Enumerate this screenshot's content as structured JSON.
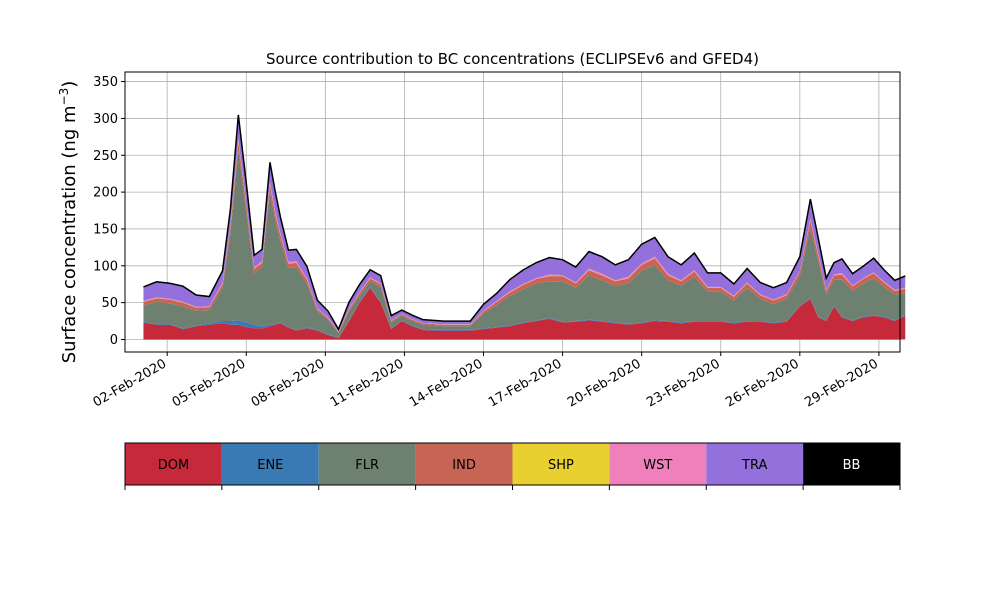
{
  "chart_data": {
    "type": "area",
    "stacked": true,
    "title": "Source contribution to BC concentrations (ECLIPSEv6 and GFED4)",
    "ylabel": "Surface concentration (ng m",
    "ylabel_superscript": "−3",
    "ylabel_suffix": ")",
    "ylim": [
      -17,
      363
    ],
    "yticks": [
      0,
      50,
      100,
      150,
      200,
      250,
      300,
      350
    ],
    "xlim": [
      31.4,
      60.8
    ],
    "xticks": [
      {
        "day": 33,
        "label": "02-Feb-2020"
      },
      {
        "day": 36,
        "label": "05-Feb-2020"
      },
      {
        "day": 39,
        "label": "08-Feb-2020"
      },
      {
        "day": 42,
        "label": "11-Feb-2020"
      },
      {
        "day": 45,
        "label": "14-Feb-2020"
      },
      {
        "day": 48,
        "label": "17-Feb-2020"
      },
      {
        "day": 51,
        "label": "20-Feb-2020"
      },
      {
        "day": 54,
        "label": "23-Feb-2020"
      },
      {
        "day": 57,
        "label": "26-Feb-2020"
      },
      {
        "day": 60,
        "label": "29-Feb-2020"
      }
    ],
    "grid": true,
    "legend_placement": "bottom colorbar",
    "x": [
      32.1,
      32.6,
      33.1,
      33.6,
      34.1,
      34.6,
      35.1,
      35.4,
      35.7,
      36.0,
      36.3,
      36.6,
      36.9,
      37.1,
      37.3,
      37.6,
      37.9,
      38.3,
      38.7,
      39.1,
      39.5,
      39.9,
      40.3,
      40.7,
      41.1,
      41.5,
      41.9,
      42.3,
      42.7,
      43.1,
      43.5,
      44.0,
      44.5,
      45.0,
      45.5,
      46.0,
      46.5,
      47.0,
      47.5,
      48.0,
      48.5,
      49.0,
      49.5,
      50.0,
      50.5,
      51.0,
      51.5,
      52.0,
      52.5,
      53.0,
      53.5,
      54.0,
      54.5,
      55.0,
      55.5,
      56.0,
      56.5,
      57.0,
      57.4,
      57.7,
      58.0,
      58.3,
      58.6,
      59.0,
      59.4,
      59.8,
      60.2,
      60.6,
      61.0
    ],
    "series": [
      {
        "name": "DOM",
        "color": "#c62a3a",
        "values": [
          23,
          20,
          20,
          14,
          18,
          20,
          22,
          20,
          20,
          17,
          15,
          15,
          18,
          20,
          22,
          16,
          12,
          15,
          12,
          6,
          2,
          25,
          50,
          70,
          50,
          14,
          25,
          18,
          13,
          12,
          12,
          12,
          12,
          14,
          16,
          18,
          22,
          25,
          28,
          23,
          24,
          26,
          24,
          22,
          20,
          22,
          25,
          24,
          22,
          24,
          24,
          24,
          22,
          24,
          24,
          22,
          24,
          45,
          55,
          30,
          25,
          45,
          30,
          25,
          30,
          32,
          30,
          25,
          32
        ]
      },
      {
        "name": "ENE",
        "color": "#3a7ab4",
        "values": [
          1,
          1,
          1,
          1,
          1,
          2,
          3,
          5,
          6,
          6,
          5,
          3,
          2,
          1,
          1,
          1,
          1,
          1,
          1,
          1,
          1,
          1,
          1,
          1,
          1,
          1,
          1,
          1,
          1,
          1,
          1,
          1,
          1,
          1,
          1,
          1,
          1,
          1,
          1,
          1,
          1,
          1,
          1,
          1,
          1,
          1,
          1,
          1,
          1,
          1,
          1,
          1,
          1,
          1,
          1,
          1,
          1,
          1,
          1,
          1,
          1,
          1,
          1,
          1,
          1,
          1,
          1,
          1,
          1
        ]
      },
      {
        "name": "FLR",
        "color": "#6e8070",
        "values": [
          22,
          30,
          28,
          30,
          20,
          18,
          45,
          120,
          230,
          150,
          70,
          80,
          180,
          140,
          110,
          80,
          85,
          60,
          25,
          20,
          6,
          12,
          8,
          8,
          20,
          8,
          6,
          6,
          6,
          6,
          5,
          5,
          5,
          20,
          30,
          40,
          45,
          50,
          50,
          55,
          45,
          60,
          55,
          50,
          55,
          70,
          75,
          55,
          50,
          60,
          40,
          40,
          30,
          45,
          30,
          25,
          30,
          40,
          95,
          75,
          35,
          35,
          50,
          40,
          45,
          50,
          40,
          35,
          30
        ]
      },
      {
        "name": "IND",
        "color": "#c86454",
        "values": [
          5,
          5,
          5,
          5,
          4,
          4,
          5,
          8,
          12,
          10,
          6,
          6,
          10,
          9,
          8,
          6,
          6,
          5,
          3,
          2,
          1,
          3,
          4,
          4,
          4,
          2,
          2,
          2,
          2,
          2,
          2,
          2,
          2,
          3,
          4,
          5,
          6,
          6,
          7,
          7,
          6,
          7,
          7,
          6,
          7,
          8,
          9,
          7,
          6,
          7,
          5,
          5,
          5,
          6,
          5,
          5,
          5,
          6,
          10,
          8,
          5,
          6,
          7,
          6,
          6,
          7,
          6,
          5,
          6
        ]
      },
      {
        "name": "SHP",
        "color": "#e8d030",
        "values": [
          0.3,
          0.3,
          0.3,
          0.3,
          0.3,
          0.3,
          0.3,
          0.5,
          0.8,
          0.5,
          0.3,
          0.3,
          0.5,
          0.5,
          0.5,
          0.3,
          0.3,
          0.3,
          0.2,
          0.1,
          0.1,
          0.2,
          0.2,
          0.2,
          0.2,
          0.1,
          0.1,
          0.1,
          0.1,
          0.1,
          0.1,
          0.1,
          0.1,
          0.2,
          0.2,
          0.3,
          0.3,
          0.3,
          0.3,
          0.3,
          0.3,
          0.3,
          0.3,
          0.3,
          0.3,
          0.3,
          0.4,
          0.3,
          0.3,
          0.3,
          0.3,
          0.3,
          0.3,
          0.3,
          0.3,
          0.3,
          0.3,
          0.3,
          0.5,
          0.4,
          0.3,
          0.3,
          0.3,
          0.3,
          0.3,
          0.3,
          0.3,
          0.3,
          0.3
        ]
      },
      {
        "name": "WST",
        "color": "#f080bc",
        "values": [
          1,
          1,
          1,
          1,
          1,
          1,
          2,
          2,
          3,
          2,
          2,
          2,
          3,
          3,
          2,
          2,
          2,
          2,
          1,
          1,
          0.5,
          1,
          1,
          1,
          1,
          1,
          0.5,
          0.5,
          0.5,
          0.5,
          0.5,
          0.5,
          0.5,
          1,
          1,
          1,
          1,
          1,
          2,
          1,
          1,
          2,
          2,
          1,
          2,
          2,
          2,
          2,
          1,
          2,
          1,
          1,
          1,
          1,
          1,
          1,
          1,
          1,
          2,
          2,
          1,
          1,
          2,
          1,
          1,
          1,
          1,
          1,
          1
        ]
      },
      {
        "name": "TRA",
        "color": "#9370db",
        "values": [
          18,
          20,
          20,
          20,
          15,
          12,
          15,
          20,
          30,
          25,
          15,
          15,
          25,
          25,
          20,
          15,
          15,
          15,
          10,
          8,
          3,
          8,
          10,
          10,
          10,
          6,
          5,
          5,
          4,
          4,
          4,
          4,
          4,
          8,
          10,
          15,
          18,
          20,
          22,
          20,
          20,
          22,
          22,
          20,
          22,
          25,
          25,
          22,
          20,
          22,
          18,
          18,
          15,
          18,
          15,
          15,
          15,
          18,
          25,
          20,
          15,
          15,
          18,
          15,
          15,
          18,
          15,
          12,
          15
        ]
      },
      {
        "name": "BB",
        "color": "#000000",
        "values": [
          1,
          1,
          1,
          1,
          1,
          1,
          1,
          2,
          3,
          2,
          1,
          1,
          2,
          2,
          2,
          1,
          1,
          1,
          1,
          0.5,
          0.3,
          0.5,
          0.5,
          0.5,
          0.5,
          0.3,
          0.3,
          0.3,
          0.3,
          0.3,
          0.3,
          0.3,
          0.3,
          0.5,
          0.5,
          1,
          1,
          1,
          1,
          1,
          1,
          1,
          1,
          1,
          1,
          1,
          1,
          1,
          1,
          1,
          1,
          1,
          1,
          1,
          1,
          1,
          1,
          1,
          2,
          1,
          1,
          1,
          1,
          1,
          1,
          1,
          1,
          1,
          1
        ]
      }
    ]
  }
}
